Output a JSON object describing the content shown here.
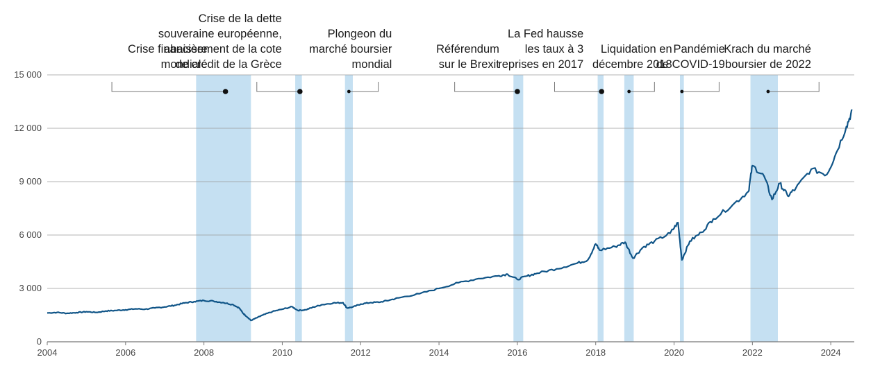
{
  "chart_data": {
    "type": "line",
    "xlim": [
      2004,
      2024.6
    ],
    "ylim": [
      0,
      15000
    ],
    "grid": true,
    "x_ticks": [
      {
        "value": 2004,
        "label": "2004"
      },
      {
        "value": 2006,
        "label": "2006"
      },
      {
        "value": 2008,
        "label": "2008"
      },
      {
        "value": 2010,
        "label": "2010"
      },
      {
        "value": 2012,
        "label": "2012"
      },
      {
        "value": 2014,
        "label": "2014"
      },
      {
        "value": 2016,
        "label": "2016"
      },
      {
        "value": 2018,
        "label": "2018"
      },
      {
        "value": 2020,
        "label": "2020"
      },
      {
        "value": 2022,
        "label": "2022"
      },
      {
        "value": 2024,
        "label": "2024"
      }
    ],
    "y_ticks": [
      {
        "value": 0,
        "label": "0"
      },
      {
        "value": 3000,
        "label": "3 000"
      },
      {
        "value": 6000,
        "label": "6 000"
      },
      {
        "value": 9000,
        "label": "9 000"
      },
      {
        "value": 12000,
        "label": "12 000"
      },
      {
        "value": 15000,
        "label": "15 000"
      }
    ],
    "series": [
      {
        "color": "#0f5487",
        "points": [
          [
            2004.0,
            1620
          ],
          [
            2004.25,
            1650
          ],
          [
            2004.5,
            1600
          ],
          [
            2004.75,
            1640
          ],
          [
            2005.0,
            1690
          ],
          [
            2005.25,
            1650
          ],
          [
            2005.5,
            1730
          ],
          [
            2005.75,
            1760
          ],
          [
            2006.0,
            1800
          ],
          [
            2006.25,
            1850
          ],
          [
            2006.5,
            1830
          ],
          [
            2006.75,
            1900
          ],
          [
            2007.0,
            1960
          ],
          [
            2007.25,
            2050
          ],
          [
            2007.5,
            2180
          ],
          [
            2007.75,
            2260
          ],
          [
            2008.0,
            2320
          ],
          [
            2008.25,
            2280
          ],
          [
            2008.5,
            2200
          ],
          [
            2008.75,
            2080
          ],
          [
            2008.9,
            1900
          ],
          [
            2009.0,
            1600
          ],
          [
            2009.1,
            1400
          ],
          [
            2009.2,
            1200
          ],
          [
            2009.35,
            1350
          ],
          [
            2009.5,
            1500
          ],
          [
            2009.75,
            1700
          ],
          [
            2010.0,
            1830
          ],
          [
            2010.25,
            1970
          ],
          [
            2010.4,
            1760
          ],
          [
            2010.6,
            1800
          ],
          [
            2010.8,
            1950
          ],
          [
            2011.0,
            2080
          ],
          [
            2011.3,
            2180
          ],
          [
            2011.55,
            2200
          ],
          [
            2011.65,
            1900
          ],
          [
            2011.8,
            1950
          ],
          [
            2012.0,
            2120
          ],
          [
            2012.25,
            2200
          ],
          [
            2012.5,
            2230
          ],
          [
            2012.75,
            2350
          ],
          [
            2013.0,
            2480
          ],
          [
            2013.5,
            2700
          ],
          [
            2014.0,
            3000
          ],
          [
            2014.5,
            3320
          ],
          [
            2015.0,
            3550
          ],
          [
            2015.5,
            3700
          ],
          [
            2015.75,
            3800
          ],
          [
            2016.0,
            3500
          ],
          [
            2016.25,
            3700
          ],
          [
            2016.5,
            3850
          ],
          [
            2017.0,
            4100
          ],
          [
            2017.5,
            4400
          ],
          [
            2017.8,
            4600
          ],
          [
            2018.0,
            5500
          ],
          [
            2018.1,
            5150
          ],
          [
            2018.5,
            5350
          ],
          [
            2018.75,
            5600
          ],
          [
            2018.95,
            4700
          ],
          [
            2019.2,
            5300
          ],
          [
            2019.5,
            5650
          ],
          [
            2019.9,
            6100
          ],
          [
            2020.1,
            6700
          ],
          [
            2020.2,
            4600
          ],
          [
            2020.4,
            5650
          ],
          [
            2020.7,
            6150
          ],
          [
            2021.0,
            6900
          ],
          [
            2021.5,
            7700
          ],
          [
            2021.9,
            8450
          ],
          [
            2022.0,
            9900
          ],
          [
            2022.3,
            9300
          ],
          [
            2022.5,
            8000
          ],
          [
            2022.7,
            8900
          ],
          [
            2022.9,
            8200
          ],
          [
            2023.1,
            8600
          ],
          [
            2023.5,
            9700
          ],
          [
            2023.9,
            9400
          ],
          [
            2024.1,
            10400
          ],
          [
            2024.4,
            12100
          ],
          [
            2024.55,
            13000
          ]
        ]
      }
    ],
    "shaded_periods": [
      [
        2007.8,
        2009.2
      ],
      [
        2010.33,
        2010.5
      ],
      [
        2011.6,
        2011.8
      ],
      [
        2015.9,
        2016.15
      ],
      [
        2018.05,
        2018.2
      ],
      [
        2018.73,
        2018.97
      ],
      [
        2020.15,
        2020.25
      ],
      [
        2021.95,
        2022.65
      ]
    ],
    "annotations": [
      {
        "lines": [
          "Crise financière",
          "mondiale"
        ],
        "x": 2008.55,
        "bracket_from": 2005.65,
        "dot": "large"
      },
      {
        "lines": [
          "Crise de la dette",
          "souveraine européenne,",
          "abaissement de la cote",
          "de crédit de la Grèce"
        ],
        "x": 2010.45,
        "bracket_from": 2009.35,
        "dot": "large"
      },
      {
        "lines": [
          "Plongeon du",
          "marché boursier",
          "mondial"
        ],
        "x": 2011.7,
        "bracket_from": 2012.45,
        "dot": "small"
      },
      {
        "lines": [
          "Référendum",
          "sur le Brexit"
        ],
        "x": 2016.0,
        "bracket_from": 2014.4,
        "dot": "large"
      },
      {
        "lines": [
          "La Fed hausse",
          "les taux à 3",
          "reprises en 2017"
        ],
        "x": 2018.15,
        "bracket_from": 2016.95,
        "dot": "large"
      },
      {
        "lines": [
          "Liquidation en",
          "décembre 2018"
        ],
        "x": 2018.85,
        "bracket_from": 2019.5,
        "dot": "small"
      },
      {
        "lines": [
          "Pandémie",
          "de COVID-19"
        ],
        "x": 2020.2,
        "bracket_from": 2021.15,
        "dot": "small"
      },
      {
        "lines": [
          "Krach du marché",
          "boursier de 2022"
        ],
        "x": 2022.4,
        "bracket_from": 2023.7,
        "dot": "small"
      }
    ]
  }
}
